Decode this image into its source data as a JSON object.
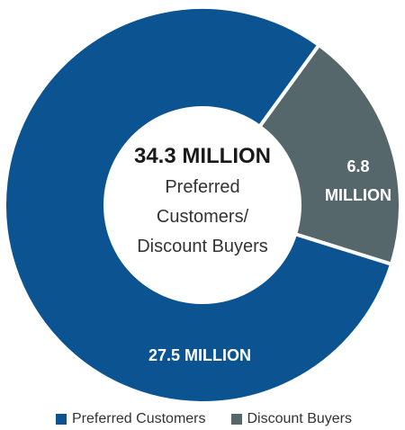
{
  "chart_data": {
    "type": "pie",
    "donut": true,
    "center": {
      "total": "34.3 MILLION",
      "lines": [
        "Preferred",
        "Customers/",
        "Discount Buyers"
      ]
    },
    "slices": [
      {
        "name": "Discount Buyers",
        "value": 6.8,
        "label_lines": [
          "6.8",
          "MILLION"
        ],
        "color": "#55676a"
      },
      {
        "name": "Preferred Customers",
        "value": 27.5,
        "label_lines": [
          "27.5 MILLION"
        ],
        "color": "#0b5391"
      }
    ],
    "legend": [
      {
        "label": "Preferred Customers",
        "color": "#0b5391"
      },
      {
        "label": "Discount Buyers",
        "color": "#55676a"
      }
    ],
    "legend_position": "bottom"
  }
}
